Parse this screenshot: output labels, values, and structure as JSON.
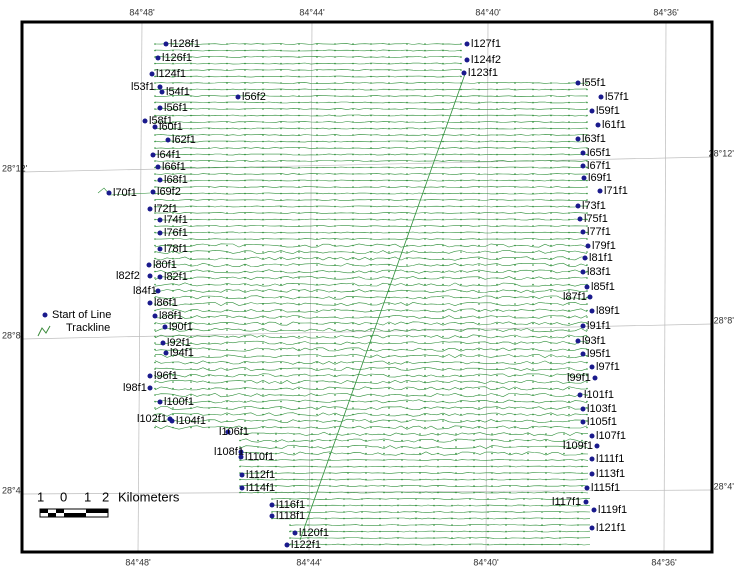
{
  "map": {
    "graticule": {
      "top": [
        "84°48'",
        "84°44'",
        "84°40'",
        "84°36'"
      ],
      "bottom": [
        "84°48'",
        "84°44'",
        "84°40'",
        "84°36'"
      ],
      "left": [
        "28°12'",
        "28°8'",
        "28°4'"
      ],
      "right": [
        "28°12'",
        "28°8'",
        "28°4'"
      ]
    },
    "legend": {
      "start_of_line": "Start of Line",
      "trackline": "Trackline"
    },
    "scale_bar": {
      "labels": [
        1,
        0,
        1,
        2
      ],
      "unit": "Kilometers"
    },
    "line_labels": [
      "l128f1",
      "l127f1",
      "l126f1",
      "l124f2",
      "l124f1",
      "l123f1",
      "l53f1",
      "l55f1",
      "l54f1",
      "l56f2",
      "l57f1",
      "l56f1",
      "l59f1",
      "l58f1",
      "l60f1",
      "l61f1",
      "l62f1",
      "l63f1",
      "l64f1",
      "l65f1",
      "l66f1",
      "l67f1",
      "l68f1",
      "l69f1",
      "l70f1",
      "l69f2",
      "l71f1",
      "l72f1",
      "l73f1",
      "l74f1",
      "l75f1",
      "l76f1",
      "l77f1",
      "l78f1",
      "l79f1",
      "l80f1",
      "l81f1",
      "l82f2",
      "l82f1",
      "l83f1",
      "l84f1",
      "l85f1",
      "l87f1",
      "l86f1",
      "l89f1",
      "l88f1",
      "l90f1",
      "l91f1",
      "l93f1",
      "l92f1",
      "l94f1",
      "l95f1",
      "l97f1",
      "l96f1",
      "l99f1",
      "l98f1",
      "l101f1",
      "l100f1",
      "l103f1",
      "l102f1",
      "l104f1",
      "l105f1",
      "l106f1",
      "l107f1",
      "l109f1",
      "l108f1",
      "l110f1",
      "l111f1",
      "l112f1",
      "l113f1",
      "l114f1",
      "l115f1",
      "l116f1",
      "l117f1",
      "l119f1",
      "l118f1",
      "l120f1",
      "l121f1",
      "l122f1"
    ]
  }
}
